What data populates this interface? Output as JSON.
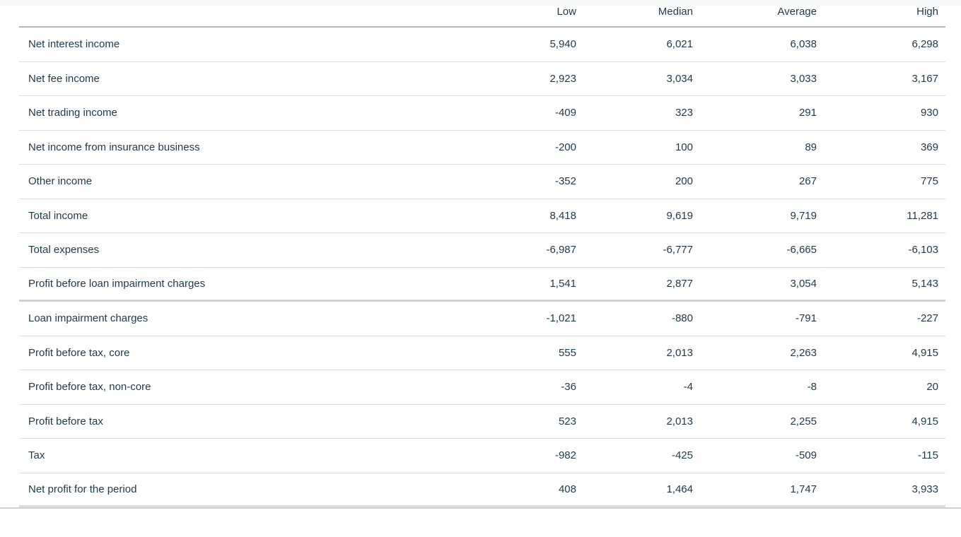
{
  "chart_data": {
    "type": "table",
    "columns": [
      "Low",
      "Median",
      "Average",
      "High"
    ],
    "rows": [
      {
        "label": "Net interest income",
        "values": [
          "5,940",
          "6,021",
          "6,038",
          "6,298"
        ]
      },
      {
        "label": "Net fee income",
        "values": [
          "2,923",
          "3,034",
          "3,033",
          "3,167"
        ]
      },
      {
        "label": "Net trading income",
        "values": [
          "-409",
          "323",
          "291",
          "930"
        ]
      },
      {
        "label": "Net income from insurance business",
        "values": [
          "-200",
          "100",
          "89",
          "369"
        ]
      },
      {
        "label": "Other income",
        "values": [
          "-352",
          "200",
          "267",
          "775"
        ]
      },
      {
        "label": "Total income",
        "values": [
          "8,418",
          "9,619",
          "9,719",
          "11,281"
        ]
      },
      {
        "label": "Total expenses",
        "values": [
          "-6,987",
          "-6,777",
          "-6,665",
          "-6,103"
        ]
      },
      {
        "label": "Profit before loan impairment charges",
        "values": [
          "1,541",
          "2,877",
          "3,054",
          "5,143"
        ]
      },
      {
        "label": "Loan impairment charges",
        "values": [
          "-1,021",
          "-880",
          "-791",
          "-227"
        ]
      },
      {
        "label": "Profit before tax, core",
        "values": [
          "555",
          "2,013",
          "2,263",
          "4,915"
        ]
      },
      {
        "label": "Profit before tax, non-core",
        "values": [
          "-36",
          "-4",
          "-8",
          "20"
        ]
      },
      {
        "label": "Profit before tax",
        "values": [
          "523",
          "2,013",
          "2,255",
          "4,915"
        ]
      },
      {
        "label": "Tax",
        "values": [
          "-982",
          "-425",
          "-509",
          "-115"
        ]
      },
      {
        "label": "Net profit for the period",
        "values": [
          "408",
          "1,464",
          "1,747",
          "3,933"
        ]
      }
    ],
    "layout": {
      "value_alignment": "right",
      "grid": "horizontal-rules-only",
      "heavy_divider_after_row": "Profit before loan impairment charges"
    }
  },
  "colors": {
    "text": "#1d3a4d",
    "header_rule": "#b2b7ba",
    "row_rule": "#d9dbdc",
    "section_rule": "#ced1d4",
    "bottom_rule": "#d9dcde",
    "top_strip_bg": "#f7f8f8",
    "background": "#ffffff"
  }
}
